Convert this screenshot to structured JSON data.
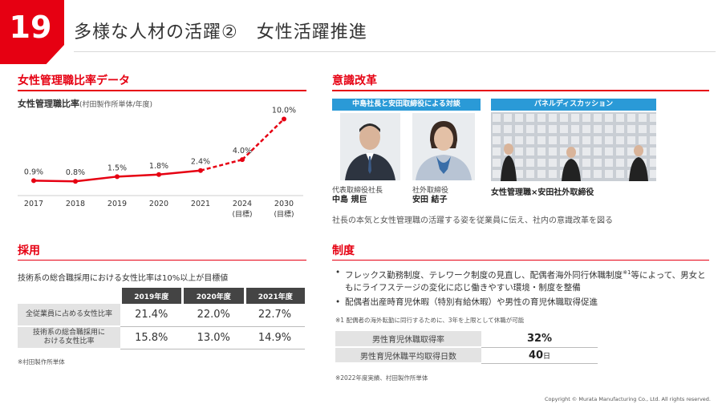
{
  "page": {
    "number": "19",
    "title": "多様な人材の活躍②　女性活躍推進"
  },
  "chart_section": {
    "heading": "女性管理職比率データ",
    "caption_title": "女性管理職比率",
    "caption_sub": "(村田製作所単体/年度)",
    "chart_data": {
      "type": "line",
      "title": "女性管理職比率",
      "categories": [
        "2017",
        "2018",
        "2019",
        "2020",
        "2021",
        "2024",
        "2030"
      ],
      "category_sublabels": [
        "",
        "",
        "",
        "",
        "",
        "(目標)",
        "(目標)"
      ],
      "values": [
        0.9,
        0.8,
        1.5,
        1.8,
        2.4,
        4.0,
        10.0
      ],
      "value_labels": [
        "0.9%",
        "0.8%",
        "1.5%",
        "1.8%",
        "2.4%",
        "4.0%",
        "10.0%"
      ],
      "actual_count": 5,
      "ylim": [
        0,
        11
      ],
      "xlabel": "",
      "ylabel": "",
      "color": "#e60012"
    }
  },
  "awareness_section": {
    "heading": "意識改革",
    "dialogue_banner": "中島社長と安田取締役による対談",
    "panel_banner": "パネルディスカッション",
    "person1_title": "代表取締役社長",
    "person1_name": "中島 規巨",
    "person2_title": "社外取締役",
    "person2_name": "安田 結子",
    "panel_caption": "女性管理職×安田社外取締役",
    "description": "社長の本気と女性管理職の活躍する姿を従業員に伝え、社内の意識改革を図る"
  },
  "recruit_section": {
    "heading": "採用",
    "text": "技術系の総合職採用における女性比率は10%以上が目標値",
    "columns": [
      "2019年度",
      "2020年度",
      "2021年度"
    ],
    "rows": [
      {
        "label": "全従業員に占める女性比率",
        "values": [
          "21.4%",
          "22.0%",
          "22.7%"
        ]
      },
      {
        "label_line1": "技術系の総合職採用に",
        "label_line2": "おける女性比率",
        "values": [
          "15.8%",
          "13.0%",
          "14.9%"
        ]
      }
    ],
    "note": "※村田製作所単体"
  },
  "system_section": {
    "heading": "制度",
    "bullet1_main": "フレックス勤務制度、テレワーク制度の見直し、配偶者海外同行休職制度",
    "bullet1_sup": "※1",
    "bullet1_tail": "等によって、男女ともにライフステージの変化に応じ働きやすい環境・制度を整備",
    "bullet2": "配偶者出産時育児休暇（特別有給休暇）や男性の育児休職取得促進",
    "footnote": "※1 配偶者の海外転勤に同行するために、3年を上限として休職が可能",
    "leave_rate_label": "男性育児休職取得率",
    "leave_rate_value": "32%",
    "leave_days_label": "男性育児休職平均取得日数",
    "leave_days_value": "40",
    "leave_days_unit": "日",
    "note": "※2022年度実績、村田製作所単体"
  },
  "footer": {
    "copyright": "Copyright © Murata Manufacturing Co., Ltd. All rights reserved."
  }
}
